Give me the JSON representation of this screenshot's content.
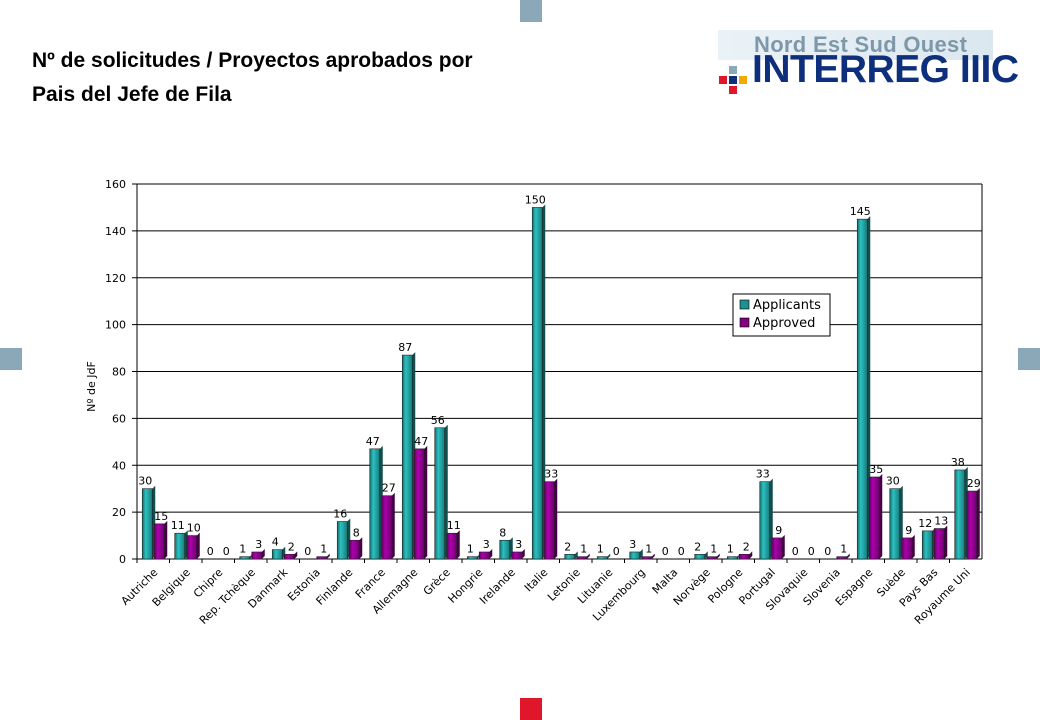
{
  "title": {
    "line1": "Nº de solicitudes / Proyectos aprobados por",
    "line2": "Pais del Jefe de Fila"
  },
  "logo": {
    "top_text": "Nord Est Sud Ouest",
    "main_text": "INTERREG IIIC"
  },
  "colors": {
    "applicants": "#1f8f8f",
    "approved": "#800080",
    "square_blue": "#8aa8b8",
    "square_red": "#e0162b",
    "logo_blue": "#0e2f7c"
  },
  "chart_data": {
    "type": "bar",
    "title": "",
    "xlabel": "",
    "ylabel": "Nº de JdF",
    "ylim": [
      0,
      160
    ],
    "yticks": [
      0,
      20,
      40,
      60,
      80,
      100,
      120,
      140,
      160
    ],
    "grid": true,
    "legend_position": "right",
    "categories": [
      "Autriche",
      "Belgique",
      "Chipre",
      "Rep. Tchèque",
      "Danmark",
      "Estonia",
      "Finlande",
      "France",
      "Allemagne",
      "Grèce",
      "Hongrie",
      "Irelande",
      "Italie",
      "Letonie",
      "Lituanie",
      "Luxembourg",
      "Malta",
      "Norvège",
      "Pologne",
      "Portugal",
      "Slovaquie",
      "Slovenia",
      "Espagne",
      "Suède",
      "Pays Bas",
      "Royaume Uni"
    ],
    "faded_categories": [
      "Rep. Tchèque",
      "Grèce",
      "Norvège",
      "Suède"
    ],
    "series": [
      {
        "name": "Applicants",
        "values": [
          30,
          11,
          0,
          1,
          4,
          0,
          16,
          47,
          87,
          56,
          1,
          8,
          150,
          2,
          1,
          3,
          0,
          2,
          1,
          33,
          0,
          0,
          145,
          30,
          12,
          38
        ]
      },
      {
        "name": "Approved",
        "values": [
          15,
          10,
          0,
          3,
          2,
          1,
          8,
          27,
          47,
          11,
          3,
          3,
          33,
          1,
          0,
          1,
          0,
          1,
          2,
          9,
          0,
          1,
          35,
          9,
          13,
          29
        ]
      }
    ]
  }
}
